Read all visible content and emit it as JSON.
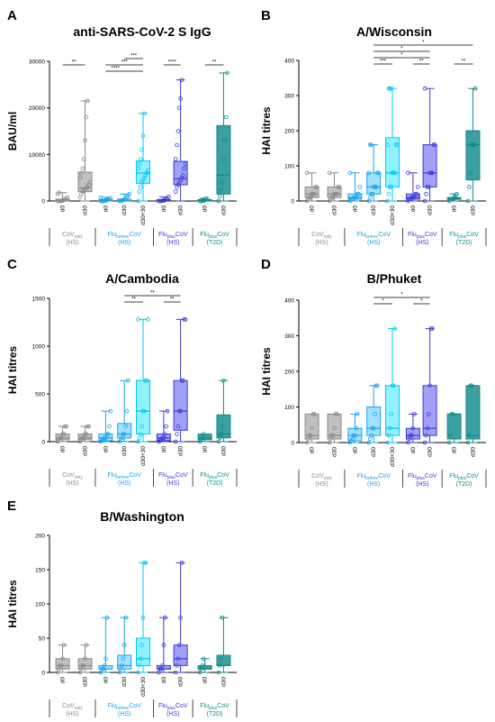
{
  "colors": {
    "cov": "#8a8a8a",
    "fluBefore": "#1aa3e8",
    "fluBefore2": "#00c8f0",
    "fluPlusHS": "#3b3bd6",
    "fluPlusT2D": "#0f8a8a",
    "text": "#000000"
  },
  "group_labels": {
    "cov": {
      "main": "CoV",
      "sub": "only",
      "cohort": "(HS)"
    },
    "flu_before": {
      "main": "Flu",
      "sub": "before",
      "tail": "CoV",
      "cohort": "(HS)"
    },
    "flu_plus_hs": {
      "main": "Flu",
      "sub": "plus",
      "tail": "CoV",
      "cohort": "(HS)"
    },
    "flu_plus_t2d": {
      "main": "Flu",
      "sub": "plus",
      "tail": "CoV",
      "cohort": "(T2D)"
    }
  },
  "chart_data": [
    {
      "panel": "A",
      "type": "boxplot",
      "title": "anti-SARS-CoV-2 S IgG",
      "ylabel": "BAU/ml",
      "ylim": [
        0,
        30000
      ],
      "yticks": [
        "0",
        "10000",
        "20000",
        "30000"
      ],
      "ytick_values": [
        0,
        10000,
        20000,
        30000
      ],
      "categories": [
        "d0",
        "d30",
        "d0",
        "d30",
        "d30+30",
        "d0",
        "d30",
        "d0",
        "d30"
      ],
      "groups": [
        "cov",
        "cov",
        "flu_before",
        "flu_before",
        "flu_before",
        "flu_plus_hs",
        "flu_plus_hs",
        "flu_plus_t2d",
        "flu_plus_t2d"
      ],
      "boxes": [
        {
          "min": 0,
          "q1": 0,
          "median": 100,
          "q3": 400,
          "max": 1800
        },
        {
          "min": 0,
          "q1": 2000,
          "median": 2800,
          "q3": 6200,
          "max": 21500
        },
        {
          "min": 0,
          "q1": 0,
          "median": 100,
          "q3": 300,
          "max": 800
        },
        {
          "min": 0,
          "q1": 0,
          "median": 100,
          "q3": 400,
          "max": 1500
        },
        {
          "min": 0,
          "q1": 3800,
          "median": 6000,
          "q3": 8600,
          "max": 18800
        },
        {
          "min": 0,
          "q1": 0,
          "median": 100,
          "q3": 300,
          "max": 900
        },
        {
          "min": 0,
          "q1": 3500,
          "median": 4800,
          "q3": 8500,
          "max": 26000
        },
        {
          "min": 0,
          "q1": 0,
          "median": 100,
          "q3": 300,
          "max": 600
        },
        {
          "min": 0,
          "q1": 1500,
          "median": 5600,
          "q3": 16200,
          "max": 27500
        }
      ],
      "points": [
        [
          0,
          0,
          0,
          0,
          100,
          200,
          300,
          500,
          800,
          1500,
          1800
        ],
        [
          800,
          1500,
          2000,
          2200,
          2500,
          2800,
          3000,
          3500,
          4000,
          5000,
          6000,
          7000,
          9000,
          13000,
          18000,
          21500
        ],
        [
          0,
          0,
          0,
          100,
          100,
          200,
          300,
          400,
          600,
          800
        ],
        [
          0,
          0,
          100,
          200,
          300,
          400,
          800,
          1200,
          1500
        ],
        [
          0,
          2000,
          3000,
          4000,
          4500,
          5000,
          5500,
          6000,
          6500,
          7000,
          8000,
          9000,
          11000,
          14000,
          18800
        ],
        [
          0,
          0,
          0,
          100,
          100,
          200,
          300,
          500,
          900
        ],
        [
          2000,
          3000,
          3500,
          4000,
          4500,
          5000,
          5500,
          7000,
          8000,
          9000,
          12000,
          15000,
          20000,
          22000,
          26000
        ],
        [
          0,
          0,
          100,
          100,
          200,
          600
        ],
        [
          0,
          1000,
          2500,
          4000,
          9000,
          13000,
          18000,
          27500
        ]
      ],
      "brackets": [
        {
          "from": 0,
          "to": 1,
          "level": 0,
          "label": "**"
        },
        {
          "from": 2,
          "to": 4,
          "level": 0,
          "label": "***"
        },
        {
          "from": 3,
          "to": 4,
          "level": 1,
          "label": "***"
        },
        {
          "from": 2,
          "to": 4,
          "level": -1,
          "label": "****"
        },
        {
          "from": 5,
          "to": 6,
          "level": 0,
          "label": "****"
        },
        {
          "from": 7,
          "to": 8,
          "level": 0,
          "label": "**"
        }
      ]
    },
    {
      "panel": "B",
      "type": "boxplot",
      "title": "A/Wisconsin",
      "ylabel": "HAI titres",
      "ylim": [
        0,
        400
      ],
      "yticks": [
        "0",
        "100",
        "200",
        "300",
        "400"
      ],
      "ytick_values": [
        0,
        100,
        200,
        300,
        400
      ],
      "categories": [
        "d0",
        "d30",
        "d0",
        "d30",
        "d30+30",
        "d0",
        "d30",
        "d0",
        "d30"
      ],
      "groups": [
        "cov",
        "cov",
        "flu_before",
        "flu_before",
        "flu_before",
        "flu_plus_hs",
        "flu_plus_hs",
        "flu_plus_t2d",
        "flu_plus_t2d"
      ],
      "boxes": [
        {
          "min": 0,
          "q1": 10,
          "median": 20,
          "q3": 40,
          "max": 80
        },
        {
          "min": 0,
          "q1": 10,
          "median": 20,
          "q3": 40,
          "max": 80
        },
        {
          "min": 0,
          "q1": 5,
          "median": 10,
          "q3": 20,
          "max": 80
        },
        {
          "min": 0,
          "q1": 20,
          "median": 40,
          "q3": 80,
          "max": 160
        },
        {
          "min": 0,
          "q1": 40,
          "median": 80,
          "q3": 180,
          "max": 320
        },
        {
          "min": 0,
          "q1": 5,
          "median": 10,
          "q3": 20,
          "max": 80
        },
        {
          "min": 0,
          "q1": 40,
          "median": 80,
          "q3": 160,
          "max": 320
        },
        {
          "min": 0,
          "q1": 5,
          "median": 5,
          "q3": 10,
          "max": 20
        },
        {
          "min": 0,
          "q1": 60,
          "median": 160,
          "q3": 200,
          "max": 320
        }
      ],
      "points": [
        [
          0,
          5,
          10,
          10,
          20,
          20,
          20,
          40,
          40,
          80
        ],
        [
          0,
          5,
          10,
          10,
          20,
          20,
          20,
          40,
          40,
          80
        ],
        [
          0,
          5,
          5,
          10,
          10,
          10,
          20,
          20,
          40,
          80
        ],
        [
          0,
          10,
          20,
          20,
          40,
          40,
          40,
          80,
          80,
          80,
          160,
          160
        ],
        [
          0,
          20,
          40,
          40,
          80,
          80,
          80,
          160,
          160,
          160,
          320,
          320,
          320
        ],
        [
          0,
          5,
          5,
          10,
          10,
          10,
          20,
          20,
          40,
          80
        ],
        [
          0,
          20,
          40,
          40,
          80,
          80,
          80,
          160,
          160,
          320
        ],
        [
          0,
          5,
          5,
          5,
          10,
          10,
          20
        ],
        [
          0,
          40,
          80,
          160,
          160,
          160,
          320
        ]
      ],
      "brackets": [
        {
          "from": 3,
          "to": 4,
          "level": 0,
          "label": "***"
        },
        {
          "from": 5,
          "to": 6,
          "level": 0,
          "label": "**"
        },
        {
          "from": 7,
          "to": 8,
          "level": 0,
          "label": "**"
        },
        {
          "from": 3,
          "to": 6,
          "level": 1,
          "label": "*"
        },
        {
          "from": 3,
          "to": 6,
          "level": 2,
          "label": "*"
        },
        {
          "from": 3,
          "to": 8,
          "level": 3,
          "label": "*"
        }
      ]
    },
    {
      "panel": "C",
      "type": "boxplot",
      "title": "A/Cambodia",
      "ylabel": "HAI titres",
      "ylim": [
        0,
        1500
      ],
      "yticks": [
        "0",
        "500",
        "1000",
        "1500"
      ],
      "ytick_values": [
        0,
        500,
        1000,
        1500
      ],
      "categories": [
        "d0",
        "d30",
        "d0",
        "d30",
        "d30+30",
        "d0",
        "d30",
        "d0",
        "d30"
      ],
      "groups": [
        "cov",
        "cov",
        "flu_before",
        "flu_before",
        "flu_before",
        "flu_plus_hs",
        "flu_plus_hs",
        "flu_plus_t2d",
        "flu_plus_t2d"
      ],
      "boxes": [
        {
          "min": 0,
          "q1": 20,
          "median": 40,
          "q3": 80,
          "max": 160
        },
        {
          "min": 0,
          "q1": 20,
          "median": 40,
          "q3": 80,
          "max": 160
        },
        {
          "min": 0,
          "q1": 10,
          "median": 40,
          "q3": 80,
          "max": 320
        },
        {
          "min": 0,
          "q1": 40,
          "median": 80,
          "q3": 190,
          "max": 640
        },
        {
          "min": 0,
          "q1": 80,
          "median": 320,
          "q3": 640,
          "max": 1280
        },
        {
          "min": 0,
          "q1": 10,
          "median": 40,
          "q3": 80,
          "max": 320
        },
        {
          "min": 0,
          "q1": 120,
          "median": 320,
          "q3": 640,
          "max": 1280
        },
        {
          "min": 0,
          "q1": 20,
          "median": 40,
          "q3": 80,
          "max": 80
        },
        {
          "min": 0,
          "q1": 40,
          "median": 80,
          "q3": 280,
          "max": 640
        }
      ],
      "points": [
        [
          0,
          20,
          40,
          40,
          80,
          80,
          160,
          160
        ],
        [
          0,
          20,
          40,
          40,
          80,
          80,
          160,
          160
        ],
        [
          0,
          10,
          20,
          40,
          40,
          80,
          80,
          160,
          320
        ],
        [
          0,
          20,
          40,
          80,
          80,
          160,
          320,
          640
        ],
        [
          0,
          40,
          80,
          160,
          320,
          320,
          640,
          640,
          1280,
          1280
        ],
        [
          0,
          10,
          20,
          40,
          40,
          80,
          160,
          320
        ],
        [
          0,
          80,
          160,
          320,
          320,
          640,
          640,
          1280,
          1280
        ],
        [
          0,
          20,
          40,
          80
        ],
        [
          0,
          40,
          80,
          160,
          640
        ]
      ],
      "brackets": [
        {
          "from": 3,
          "to": 4,
          "level": 0,
          "label": "**"
        },
        {
          "from": 5,
          "to": 6,
          "level": 0,
          "label": "**"
        },
        {
          "from": 3,
          "to": 6,
          "level": 1,
          "label": "**"
        }
      ]
    },
    {
      "panel": "D",
      "type": "boxplot",
      "title": "B/Phuket",
      "ylabel": "HAI titres",
      "ylim": [
        0,
        400
      ],
      "yticks": [
        "0",
        "100",
        "200",
        "300",
        "400"
      ],
      "ytick_values": [
        0,
        100,
        200,
        300,
        400
      ],
      "categories": [
        "d0",
        "d30",
        "d0",
        "d30",
        "d30+30",
        "d0",
        "d30",
        "d0",
        "d30"
      ],
      "groups": [
        "cov",
        "cov",
        "flu_before",
        "flu_before",
        "flu_before",
        "flu_plus_hs",
        "flu_plus_hs",
        "flu_plus_t2d",
        "flu_plus_t2d"
      ],
      "boxes": [
        {
          "min": 0,
          "q1": 10,
          "median": 20,
          "q3": 80,
          "max": 80
        },
        {
          "min": 0,
          "q1": 10,
          "median": 20,
          "q3": 80,
          "max": 80
        },
        {
          "min": 0,
          "q1": 5,
          "median": 20,
          "q3": 40,
          "max": 80
        },
        {
          "min": 0,
          "q1": 20,
          "median": 40,
          "q3": 100,
          "max": 160
        },
        {
          "min": 0,
          "q1": 20,
          "median": 40,
          "q3": 160,
          "max": 320
        },
        {
          "min": 0,
          "q1": 10,
          "median": 20,
          "q3": 40,
          "max": 80
        },
        {
          "min": 0,
          "q1": 20,
          "median": 40,
          "q3": 160,
          "max": 320
        },
        {
          "min": 0,
          "q1": 10,
          "median": 80,
          "q3": 80,
          "max": 80
        },
        {
          "min": 0,
          "q1": 10,
          "median": 20,
          "q3": 160,
          "max": 160
        }
      ],
      "points": [
        [
          0,
          10,
          20,
          20,
          40,
          80,
          80
        ],
        [
          0,
          10,
          20,
          20,
          40,
          80,
          80
        ],
        [
          0,
          5,
          10,
          20,
          20,
          40,
          80
        ],
        [
          0,
          10,
          20,
          40,
          40,
          80,
          160,
          160
        ],
        [
          0,
          20,
          40,
          80,
          160,
          160,
          320
        ],
        [
          0,
          10,
          20,
          20,
          40,
          80
        ],
        [
          0,
          20,
          40,
          80,
          160,
          320,
          320
        ],
        [
          0,
          20,
          80,
          80
        ],
        [
          0,
          20,
          160,
          160
        ]
      ],
      "brackets": [
        {
          "from": 3,
          "to": 4,
          "level": 0,
          "label": "*"
        },
        {
          "from": 5,
          "to": 6,
          "level": 0,
          "label": "*"
        },
        {
          "from": 3,
          "to": 6,
          "level": 1,
          "label": "*"
        }
      ]
    },
    {
      "panel": "E",
      "type": "boxplot",
      "title": "B/Washington",
      "ylabel": "HAI titres",
      "ylim": [
        0,
        200
      ],
      "yticks": [
        "0",
        "50",
        "100",
        "150",
        "200"
      ],
      "ytick_values": [
        0,
        50,
        100,
        150,
        200
      ],
      "categories": [
        "d0",
        "d30",
        "d0",
        "d30",
        "d30+30",
        "d0",
        "d30",
        "d0",
        "d30"
      ],
      "groups": [
        "cov",
        "cov",
        "flu_before",
        "flu_before",
        "flu_before",
        "flu_plus_hs",
        "flu_plus_hs",
        "flu_plus_t2d",
        "flu_plus_t2d"
      ],
      "boxes": [
        {
          "min": 0,
          "q1": 5,
          "median": 10,
          "q3": 20,
          "max": 40
        },
        {
          "min": 0,
          "q1": 5,
          "median": 10,
          "q3": 20,
          "max": 40
        },
        {
          "min": 0,
          "q1": 5,
          "median": 5,
          "q3": 10,
          "max": 80
        },
        {
          "min": 0,
          "q1": 5,
          "median": 10,
          "q3": 25,
          "max": 80
        },
        {
          "min": 0,
          "q1": 10,
          "median": 20,
          "q3": 50,
          "max": 160
        },
        {
          "min": 0,
          "q1": 5,
          "median": 5,
          "q3": 10,
          "max": 80
        },
        {
          "min": 0,
          "q1": 10,
          "median": 20,
          "q3": 40,
          "max": 160
        },
        {
          "min": 0,
          "q1": 5,
          "median": 5,
          "q3": 10,
          "max": 20
        },
        {
          "min": 0,
          "q1": 10,
          "median": 10,
          "q3": 25,
          "max": 80
        }
      ],
      "points": [
        [
          0,
          5,
          10,
          10,
          20,
          40
        ],
        [
          0,
          5,
          10,
          10,
          20,
          40
        ],
        [
          0,
          5,
          5,
          10,
          20,
          80
        ],
        [
          0,
          5,
          10,
          20,
          40,
          80
        ],
        [
          0,
          10,
          20,
          40,
          80,
          160,
          160
        ],
        [
          0,
          5,
          5,
          10,
          40,
          80
        ],
        [
          0,
          10,
          20,
          40,
          80,
          160
        ],
        [
          0,
          5,
          10,
          20
        ],
        [
          0,
          10,
          20,
          80
        ]
      ],
      "brackets": []
    }
  ]
}
